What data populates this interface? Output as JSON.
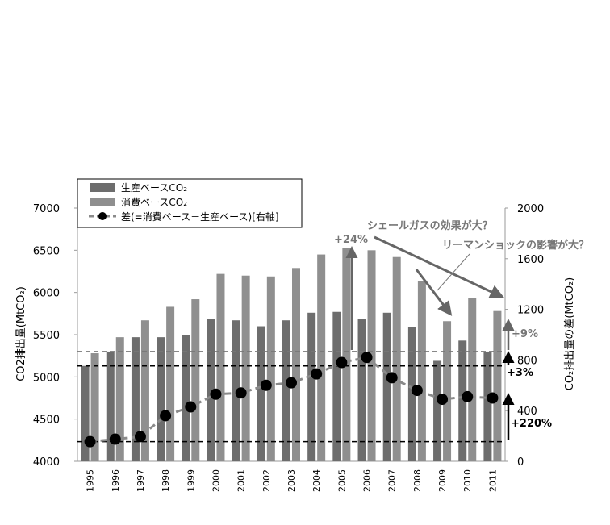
{
  "chart_data": {
    "type": "bar",
    "categories": [
      "1995",
      "1996",
      "1997",
      "1998",
      "1999",
      "2000",
      "2001",
      "2002",
      "2003",
      "2004",
      "2005",
      "2006",
      "2007",
      "2008",
      "2009",
      "2010",
      "2011"
    ],
    "series": [
      {
        "name": "生産ベースCO₂",
        "axis": "left",
        "kind": "bar",
        "color": "#6d6d6d",
        "values": [
          5130,
          5300,
          5470,
          5470,
          5500,
          5690,
          5670,
          5600,
          5670,
          5760,
          5770,
          5690,
          5760,
          5590,
          5190,
          5430,
          5300
        ]
      },
      {
        "name": "消費ベースCO₂",
        "axis": "left",
        "kind": "bar",
        "color": "#8f8f8f",
        "values": [
          5280,
          5470,
          5670,
          5830,
          5920,
          6220,
          6200,
          6190,
          6290,
          6450,
          6530,
          6500,
          6420,
          6140,
          5660,
          5930,
          5780
        ]
      },
      {
        "name": "差(=消費ベース－生産ベース)[右軸]",
        "axis": "right",
        "kind": "line",
        "color": "#000000",
        "values": [
          155,
          175,
          195,
          360,
          430,
          530,
          540,
          600,
          620,
          690,
          780,
          820,
          660,
          560,
          490,
          510,
          500
        ]
      }
    ],
    "ylabel": "CO2排出量(MtCO₂)",
    "y2label": "CO₂排出量の差(MtCO₂)",
    "ylim": [
      4000,
      7000
    ],
    "y2lim": [
      0,
      2000
    ],
    "yticks": [
      "4000",
      "4500",
      "5000",
      "5500",
      "6000",
      "6500",
      "7000"
    ],
    "y2ticks": [
      "0",
      "400",
      "800",
      "1200",
      "1600",
      "2000"
    ],
    "legend_position": "top-left",
    "grid": false,
    "annotations": {
      "shale": "シェールガスの効果が大？",
      "lehman": "リーマンショックの影響が大？",
      "pct24": "+24%",
      "pct9": "+9%",
      "pct3": "+3%",
      "pct220": "+220%"
    },
    "reference_lines": {
      "left_axis": [
        5300,
        5130
      ],
      "right_axis": [
        155
      ]
    }
  }
}
